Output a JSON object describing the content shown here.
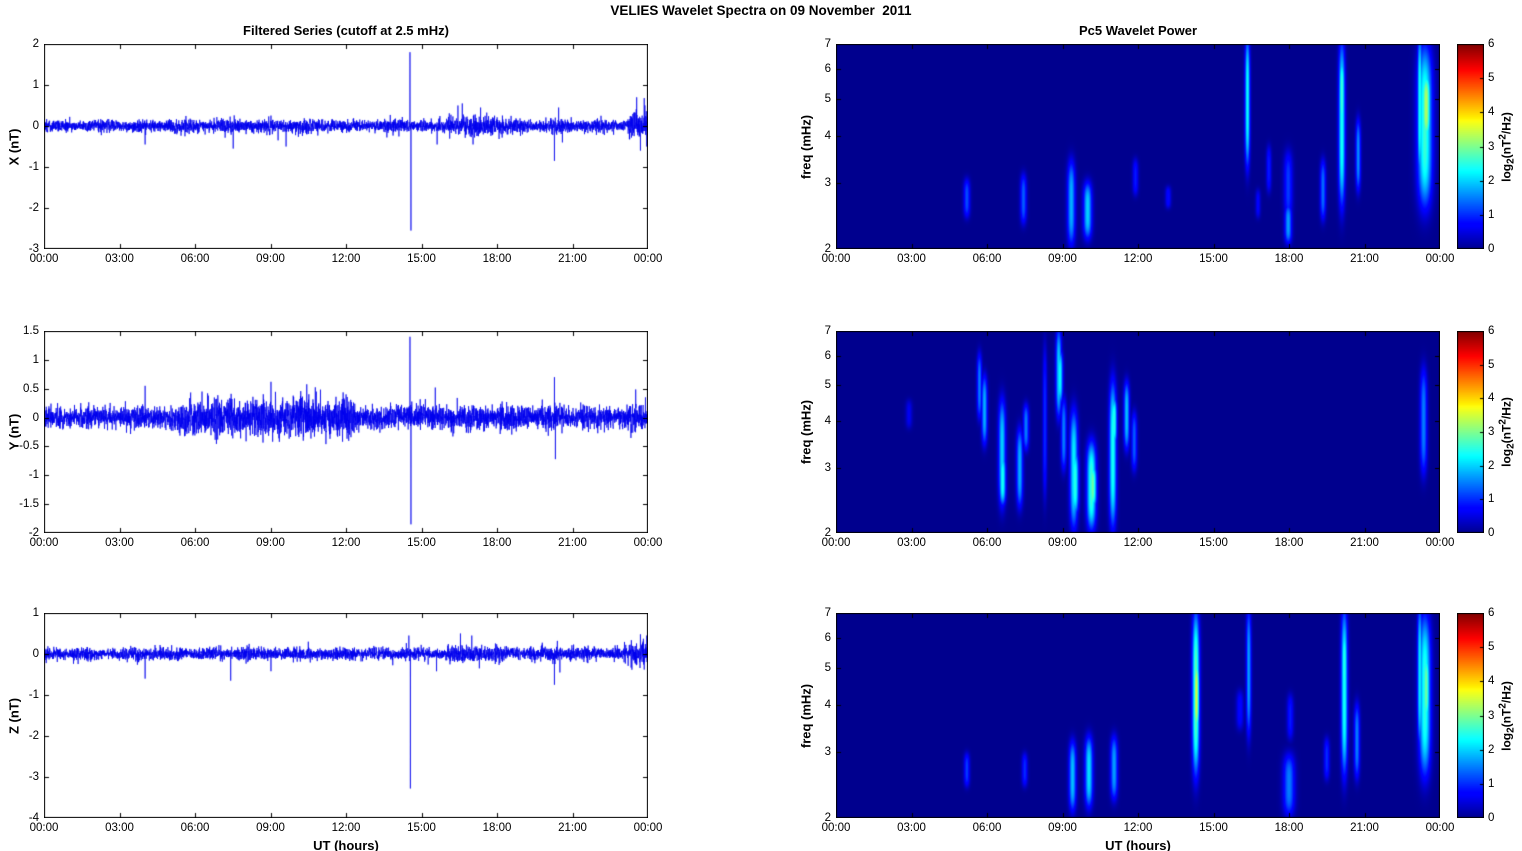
{
  "title": "VELIES Wavelet Spectra on 09 November  2011",
  "colors": {
    "line_series": "#0000EE",
    "spectrogram_background": "#00008F",
    "figure_background": "#FFFFFF",
    "axis_frame": "#000000"
  },
  "x_axis": {
    "label": "UT (hours)",
    "tick_hours": [
      0,
      3,
      6,
      9,
      12,
      15,
      18,
      21,
      24
    ],
    "tick_labels": [
      "00:00",
      "03:00",
      "06:00",
      "09:00",
      "12:00",
      "15:00",
      "18:00",
      "21:00",
      "00:00"
    ]
  },
  "colorbar": {
    "ticks": [
      0,
      1,
      2,
      3,
      4,
      5,
      6
    ],
    "label_prefix": "log",
    "label_sub": "2",
    "label_mid": "(nT",
    "label_sup": "2",
    "label_suffix": "/Hz)"
  },
  "chart_data": [
    {
      "type": "line",
      "panel": "filtered-series-x",
      "title": "Filtered Series (cutoff at 2.5 mHz)",
      "ylabel": "X (nT)",
      "ylim": [
        -3,
        2
      ],
      "yticks": [
        2,
        1,
        0,
        -1,
        -2,
        -3
      ],
      "x_range_hours": [
        0,
        24
      ],
      "units": "nT",
      "envelope_fields": [
        "t0_hours",
        "t1_hours",
        "noise_sigma_nT"
      ],
      "noise_envelope": [
        [
          0,
          3.8,
          0.065
        ],
        [
          3.8,
          5.2,
          0.07
        ],
        [
          5.2,
          11.5,
          0.08
        ],
        [
          11.5,
          16,
          0.07
        ],
        [
          16,
          18.3,
          0.115
        ],
        [
          18.3,
          23.2,
          0.075
        ],
        [
          23.2,
          24,
          0.16
        ]
      ],
      "spike_fields": [
        "t_hours",
        "value_nT"
      ],
      "spikes": [
        [
          4.02,
          -0.45
        ],
        [
          7.52,
          -0.55
        ],
        [
          9.3,
          -0.35
        ],
        [
          9.62,
          -0.5
        ],
        [
          14.54,
          1.8
        ],
        [
          14.58,
          -2.55
        ],
        [
          15.62,
          -0.45
        ],
        [
          16.45,
          0.5
        ],
        [
          16.62,
          0.55
        ],
        [
          17.05,
          -0.45
        ],
        [
          17.35,
          0.45
        ],
        [
          20.28,
          -0.85
        ],
        [
          20.45,
          0.45
        ],
        [
          20.6,
          -0.4
        ],
        [
          23.55,
          0.7
        ],
        [
          23.7,
          -0.6
        ],
        [
          23.85,
          0.68
        ],
        [
          23.95,
          -0.5
        ]
      ]
    },
    {
      "type": "line",
      "panel": "filtered-series-y",
      "ylabel": "Y (nT)",
      "ylim": [
        -2,
        1.5
      ],
      "yticks": [
        1.5,
        1,
        0.5,
        0,
        -0.5,
        -1,
        -1.5,
        -2
      ],
      "x_range_hours": [
        0,
        24
      ],
      "units": "nT",
      "envelope_fields": [
        "t0_hours",
        "t1_hours",
        "noise_sigma_nT"
      ],
      "noise_envelope": [
        [
          0,
          3.8,
          0.085
        ],
        [
          3.8,
          5.3,
          0.095
        ],
        [
          5.3,
          9,
          0.145
        ],
        [
          9,
          12.3,
          0.155
        ],
        [
          12.3,
          13.2,
          0.11
        ],
        [
          13.2,
          23.3,
          0.095
        ],
        [
          23.3,
          24,
          0.12
        ]
      ],
      "spike_fields": [
        "t_hours",
        "value_nT"
      ],
      "spikes": [
        [
          4.02,
          0.55
        ],
        [
          6.5,
          0.42
        ],
        [
          6.9,
          -0.38
        ],
        [
          7.5,
          -0.36
        ],
        [
          8.3,
          0.36
        ],
        [
          9.02,
          0.62
        ],
        [
          9.35,
          -0.42
        ],
        [
          9.9,
          0.38
        ],
        [
          10.3,
          -0.4
        ],
        [
          10.82,
          0.45
        ],
        [
          11.2,
          -0.46
        ],
        [
          11.6,
          0.36
        ],
        [
          12.2,
          -0.34
        ],
        [
          14.54,
          1.4
        ],
        [
          14.58,
          -1.85
        ],
        [
          15.55,
          0.52
        ],
        [
          20.28,
          0.7
        ],
        [
          20.32,
          -0.72
        ],
        [
          23.9,
          0.35
        ]
      ]
    },
    {
      "type": "line",
      "panel": "filtered-series-z",
      "ylabel": "Z (nT)",
      "xlabel": "UT (hours)",
      "ylim": [
        -4,
        1
      ],
      "yticks": [
        1,
        0,
        -1,
        -2,
        -3,
        -4
      ],
      "x_range_hours": [
        0,
        24
      ],
      "units": "nT",
      "envelope_fields": [
        "t0_hours",
        "t1_hours",
        "noise_sigma_nT"
      ],
      "noise_envelope": [
        [
          0,
          16,
          0.068
        ],
        [
          16,
          18.3,
          0.1
        ],
        [
          18.3,
          23.3,
          0.078
        ],
        [
          23.3,
          24,
          0.14
        ]
      ],
      "spike_fields": [
        "t_hours",
        "value_nT"
      ],
      "spikes": [
        [
          4.02,
          -0.6
        ],
        [
          7.42,
          -0.65
        ],
        [
          9.02,
          -0.42
        ],
        [
          10.5,
          0.3
        ],
        [
          14.5,
          0.45
        ],
        [
          14.56,
          -3.28
        ],
        [
          15.6,
          -0.42
        ],
        [
          16.55,
          0.5
        ],
        [
          17.0,
          0.45
        ],
        [
          17.3,
          -0.35
        ],
        [
          20.28,
          -0.75
        ],
        [
          20.4,
          0.32
        ],
        [
          20.5,
          -0.45
        ],
        [
          23.7,
          0.48
        ],
        [
          23.85,
          -0.38
        ],
        [
          23.95,
          0.45
        ]
      ]
    },
    {
      "type": "heatmap",
      "panel": "wavelet-power-x",
      "title": "Pc5 Wavelet Power",
      "ylabel": "freq (mHz)",
      "ylim": [
        2,
        7
      ],
      "yscale": "log",
      "yticks": [
        2,
        3,
        4,
        5,
        6,
        7
      ],
      "zlim": [
        0,
        6
      ],
      "zlabel": "log2(nT^2/Hz)",
      "feature_fields": [
        "t_hours",
        "f_lo_mHz",
        "f_hi_mHz",
        "peak_log2_power",
        "sigma_hours"
      ],
      "features": [
        [
          5.2,
          2.4,
          3.1,
          1.2,
          0.09
        ],
        [
          7.45,
          2.3,
          3.2,
          1.3,
          0.09
        ],
        [
          9.35,
          2.0,
          3.5,
          1.8,
          0.11
        ],
        [
          10.0,
          2.1,
          3.05,
          2.0,
          0.12
        ],
        [
          11.9,
          2.75,
          3.5,
          0.9,
          0.08
        ],
        [
          13.2,
          2.55,
          2.95,
          0.8,
          0.08
        ],
        [
          16.35,
          3.2,
          7.6,
          2.3,
          0.07
        ],
        [
          16.77,
          2.4,
          2.9,
          0.7,
          0.07
        ],
        [
          17.2,
          2.8,
          3.8,
          0.9,
          0.07
        ],
        [
          17.97,
          2.35,
          3.7,
          1.1,
          0.12
        ],
        [
          17.97,
          2.05,
          2.65,
          1.7,
          0.1
        ],
        [
          19.35,
          2.35,
          3.5,
          1.4,
          0.08
        ],
        [
          20.1,
          2.5,
          7.4,
          2.4,
          0.09
        ],
        [
          20.1,
          4.0,
          6.6,
          2.6,
          0.08
        ],
        [
          20.75,
          2.8,
          4.5,
          1.6,
          0.07
        ],
        [
          23.2,
          3.0,
          7.7,
          2.4,
          0.07
        ],
        [
          23.4,
          2.5,
          7.2,
          2.6,
          0.2
        ],
        [
          23.45,
          3.8,
          6.0,
          3.3,
          0.13
        ]
      ]
    },
    {
      "type": "heatmap",
      "panel": "wavelet-power-y",
      "ylabel": "freq (mHz)",
      "ylim": [
        2,
        7
      ],
      "yscale": "log",
      "yticks": [
        2,
        3,
        4,
        5,
        6,
        7
      ],
      "zlim": [
        0,
        6
      ],
      "zlabel": "log2(nT^2/Hz)",
      "feature_fields": [
        "t_hours",
        "f_lo_mHz",
        "f_hi_mHz",
        "peak_log2_power",
        "sigma_hours"
      ],
      "features": [
        [
          2.9,
          3.8,
          4.6,
          0.6,
          0.09
        ],
        [
          5.7,
          4.0,
          6.2,
          1.5,
          0.07
        ],
        [
          5.9,
          3.4,
          5.4,
          1.8,
          0.08
        ],
        [
          6.6,
          2.3,
          4.7,
          2.0,
          0.1
        ],
        [
          6.62,
          2.35,
          3.3,
          2.4,
          0.09
        ],
        [
          7.3,
          2.3,
          3.9,
          1.8,
          0.09
        ],
        [
          7.55,
          3.3,
          4.5,
          1.5,
          0.08
        ],
        [
          8.3,
          2.4,
          6.6,
          1.0,
          0.06
        ],
        [
          8.85,
          4.0,
          7.3,
          2.0,
          0.08
        ],
        [
          8.9,
          4.4,
          6.3,
          2.3,
          0.08
        ],
        [
          9.05,
          2.9,
          4.7,
          1.5,
          0.08
        ],
        [
          9.45,
          2.0,
          4.4,
          2.2,
          0.11
        ],
        [
          9.5,
          2.2,
          3.4,
          2.5,
          0.1
        ],
        [
          10.15,
          2.0,
          3.6,
          2.6,
          0.13
        ],
        [
          10.2,
          2.3,
          3.1,
          2.9,
          0.11
        ],
        [
          11.0,
          2.0,
          5.3,
          2.4,
          0.1
        ],
        [
          11.05,
          3.4,
          4.7,
          2.5,
          0.08
        ],
        [
          11.55,
          3.3,
          5.2,
          1.9,
          0.08
        ],
        [
          11.85,
          2.9,
          4.3,
          1.3,
          0.08
        ],
        [
          23.35,
          2.8,
          5.7,
          1.5,
          0.1
        ]
      ]
    },
    {
      "type": "heatmap",
      "panel": "wavelet-power-z",
      "ylabel": "freq (mHz)",
      "xlabel": "UT (hours)",
      "ylim": [
        2,
        7
      ],
      "yscale": "log",
      "yticks": [
        2,
        3,
        4,
        5,
        6,
        7
      ],
      "zlim": [
        0,
        6
      ],
      "zlabel": "log2(nT^2/Hz)",
      "feature_fields": [
        "t_hours",
        "f_lo_mHz",
        "f_hi_mHz",
        "peak_log2_power",
        "sigma_hours"
      ],
      "features": [
        [
          5.2,
          2.4,
          3.0,
          1.1,
          0.08
        ],
        [
          7.5,
          2.4,
          3.0,
          1.0,
          0.08
        ],
        [
          9.4,
          2.05,
          3.25,
          1.9,
          0.1
        ],
        [
          10.05,
          2.1,
          3.35,
          2.1,
          0.11
        ],
        [
          11.05,
          2.2,
          3.35,
          1.7,
          0.1
        ],
        [
          14.3,
          2.5,
          7.4,
          2.8,
          0.1
        ],
        [
          14.32,
          3.3,
          5.4,
          3.5,
          0.08
        ],
        [
          16.05,
          3.4,
          4.4,
          0.8,
          0.1
        ],
        [
          16.4,
          3.2,
          7.5,
          1.7,
          0.07
        ],
        [
          18.0,
          2.0,
          3.0,
          1.5,
          0.16
        ],
        [
          18.05,
          3.2,
          4.3,
          0.9,
          0.09
        ],
        [
          19.5,
          2.5,
          3.3,
          1.0,
          0.08
        ],
        [
          20.2,
          2.5,
          7.5,
          2.4,
          0.09
        ],
        [
          20.2,
          4.0,
          6.5,
          2.5,
          0.08
        ],
        [
          20.7,
          2.5,
          4.1,
          1.5,
          0.08
        ],
        [
          23.2,
          3.0,
          7.6,
          2.2,
          0.07
        ],
        [
          23.4,
          2.5,
          7.2,
          2.5,
          0.16
        ],
        [
          23.45,
          3.5,
          5.6,
          2.9,
          0.1
        ]
      ]
    }
  ]
}
